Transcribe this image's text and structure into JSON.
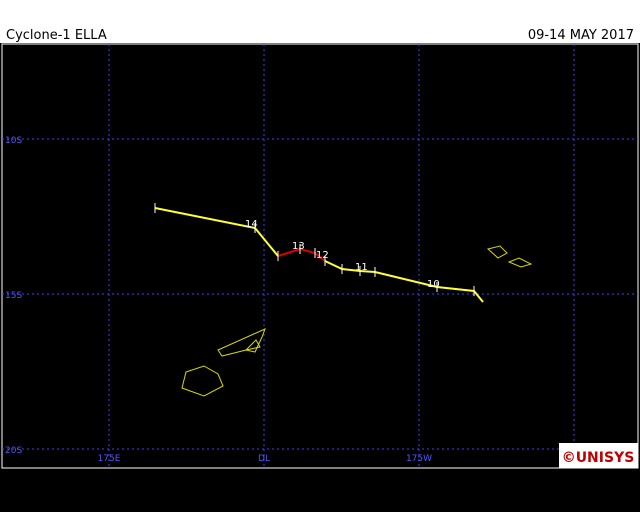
{
  "header": {
    "title": "Cyclone-1 ELLA",
    "dates": "09-14 MAY 2017"
  },
  "axes": {
    "lat_labels": [
      "10S",
      "15S",
      "20S"
    ],
    "lon_labels": [
      "175E",
      "DL",
      "175W"
    ]
  },
  "track": {
    "day_labels": [
      "14",
      "13",
      "12",
      "11",
      "10"
    ]
  },
  "logo": "©UNISYS"
}
